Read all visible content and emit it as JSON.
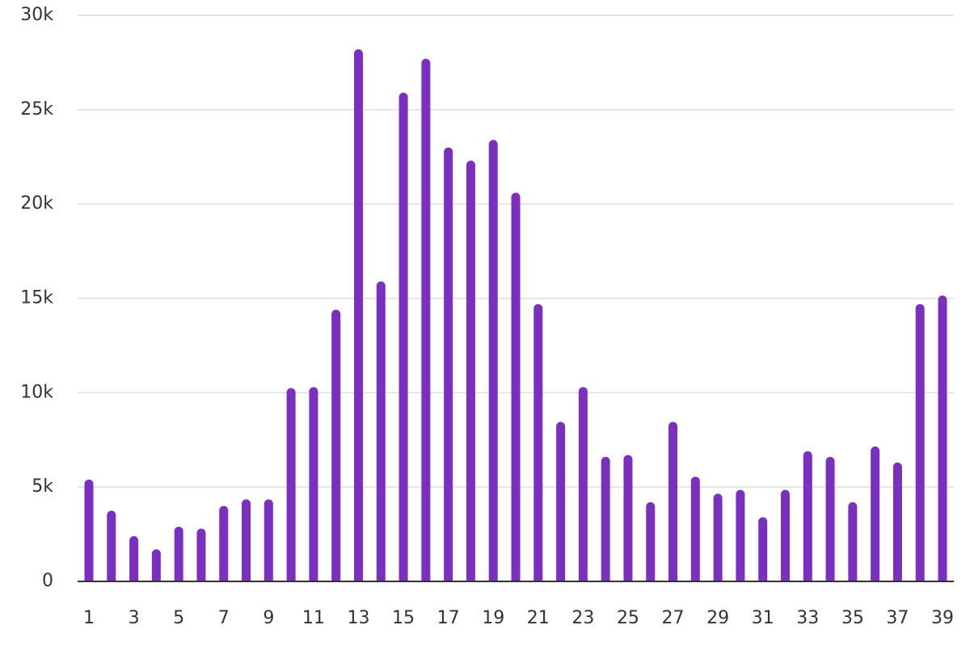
{
  "chart_data": {
    "type": "bar",
    "title": "",
    "xlabel": "",
    "ylabel": "",
    "categories": [
      "1",
      "2",
      "3",
      "4",
      "5",
      "6",
      "7",
      "8",
      "9",
      "10",
      "11",
      "12",
      "13",
      "14",
      "15",
      "16",
      "17",
      "18",
      "19",
      "20",
      "21",
      "22",
      "23",
      "24",
      "25",
      "26",
      "27",
      "28",
      "29",
      "30",
      "31",
      "32",
      "33",
      "34",
      "35",
      "36",
      "37",
      "38",
      "39"
    ],
    "x_tick_labels": [
      "1",
      "3",
      "5",
      "7",
      "9",
      "11",
      "13",
      "15",
      "17",
      "19",
      "21",
      "23",
      "25",
      "27",
      "29",
      "31",
      "33",
      "35",
      "37",
      "39"
    ],
    "values": [
      5400,
      3750,
      2400,
      1700,
      2900,
      2800,
      4000,
      4350,
      4350,
      10250,
      10300,
      14400,
      28200,
      15900,
      25900,
      27700,
      23000,
      22300,
      23400,
      20600,
      14700,
      8450,
      10300,
      6600,
      6700,
      4200,
      8450,
      5550,
      4650,
      4850,
      3400,
      4850,
      6900,
      6600,
      4200,
      7150,
      6300,
      14700,
      15150
    ],
    "ylim": [
      0,
      30000
    ],
    "y_ticks": [
      0,
      5000,
      10000,
      15000,
      20000,
      25000,
      30000
    ],
    "y_tick_labels": [
      "0",
      "5k",
      "10k",
      "15k",
      "20k",
      "25k",
      "30k"
    ],
    "grid": true,
    "legend": "none",
    "bar_color": "#7b2fbf"
  }
}
